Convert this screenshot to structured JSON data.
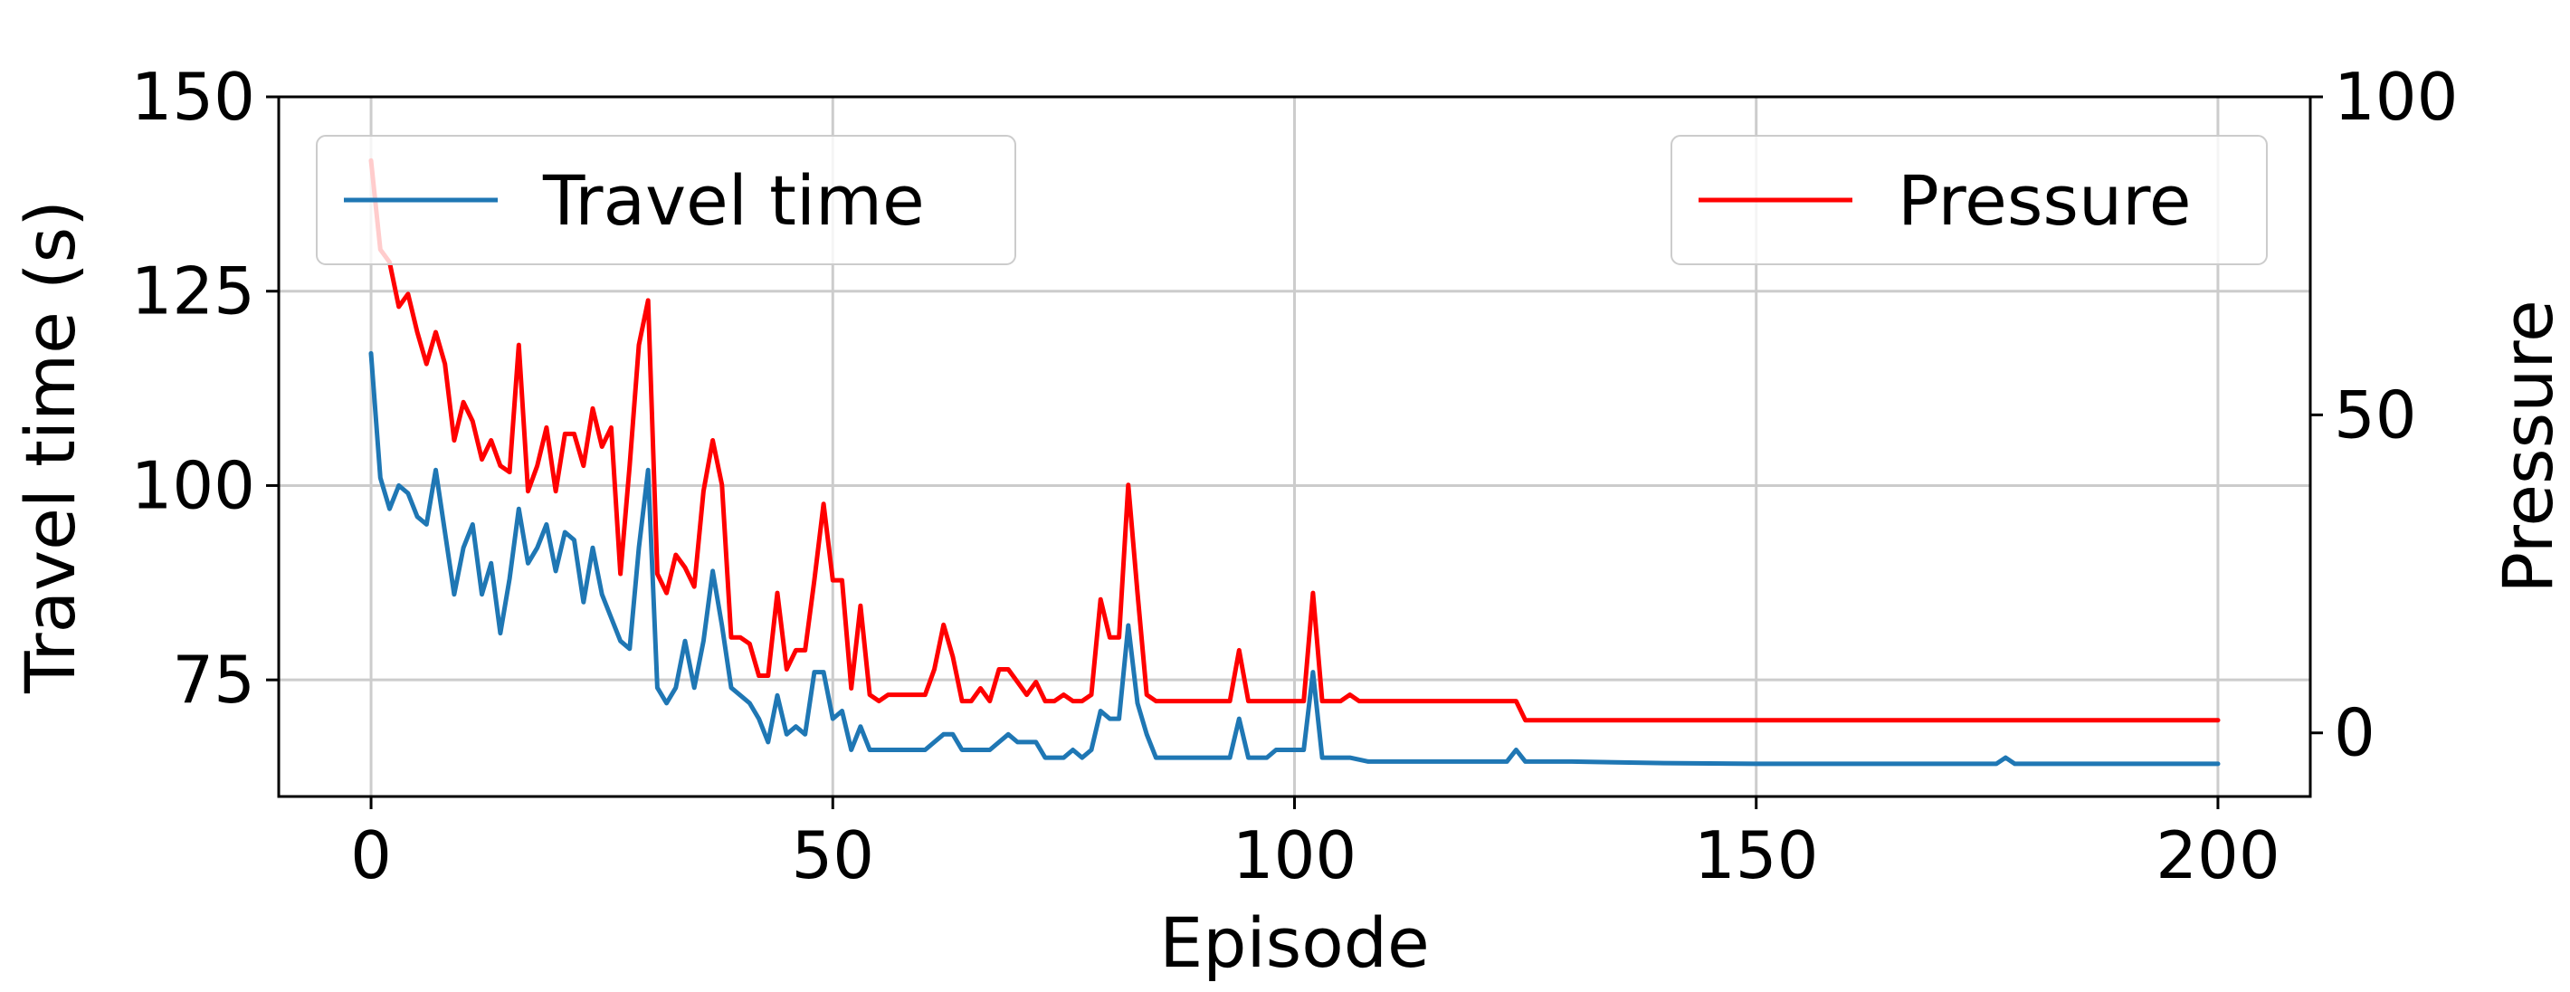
{
  "chart_data": {
    "type": "line",
    "xlabel": "Episode",
    "ylabel_left": "Travel time (s)",
    "ylabel_right": "Pressure",
    "xlim": [
      -10,
      210
    ],
    "ylim_left": [
      60,
      150
    ],
    "ylim_right": [
      -10,
      100
    ],
    "xticks": [
      0,
      50,
      100,
      150,
      200
    ],
    "yticks_left": [
      75,
      100,
      125,
      150
    ],
    "yticks_right": [
      0,
      50,
      100
    ],
    "grid": true,
    "legend_left": "top-left",
    "legend_right": "top-right",
    "series": [
      {
        "name": "Travel time",
        "axis": "left",
        "color": "#1f77b4",
        "x": [
          0,
          1,
          2,
          3,
          4,
          5,
          6,
          7,
          8,
          9,
          10,
          11,
          12,
          13,
          14,
          15,
          16,
          17,
          18,
          19,
          20,
          21,
          22,
          23,
          24,
          25,
          26,
          27,
          28,
          29,
          30,
          31,
          32,
          33,
          34,
          35,
          36,
          37,
          38,
          39,
          40,
          41,
          42,
          43,
          44,
          45,
          46,
          47,
          48,
          49,
          50,
          51,
          52,
          53,
          54,
          55,
          56,
          57,
          58,
          59,
          60,
          61,
          62,
          63,
          64,
          65,
          66,
          67,
          68,
          69,
          70,
          71,
          72,
          73,
          74,
          75,
          76,
          77,
          78,
          79,
          80,
          81,
          82,
          83,
          84,
          85,
          86,
          87,
          88,
          89,
          90,
          91,
          92,
          93,
          94,
          95,
          96,
          97,
          98,
          99,
          100,
          101,
          102,
          103,
          104,
          105,
          106,
          108,
          110,
          115,
          120,
          123,
          124,
          125,
          130,
          140,
          150,
          160,
          170,
          175,
          176,
          177,
          178,
          180,
          185,
          190,
          195,
          200
        ],
        "y": [
          117,
          101,
          97,
          100,
          99,
          96,
          95,
          102,
          94,
          86,
          92,
          95,
          86,
          90,
          81,
          88,
          97,
          90,
          92,
          95,
          89,
          94,
          93,
          85,
          92,
          86,
          83,
          80,
          79,
          92,
          102,
          74,
          72,
          74,
          80,
          74,
          80,
          89,
          82,
          74,
          73,
          72,
          70,
          67,
          73,
          68,
          69,
          68,
          76,
          76,
          70,
          71,
          66,
          69,
          66,
          66,
          66,
          66,
          66,
          66,
          66,
          67,
          68,
          68,
          66,
          66,
          66,
          66,
          67,
          68,
          67,
          67,
          67,
          65,
          65,
          65,
          66,
          65,
          66,
          71,
          70,
          70,
          82,
          72,
          68,
          65,
          65,
          65,
          65,
          65,
          65,
          65,
          65,
          65,
          70,
          65,
          65,
          65,
          66,
          66,
          66,
          66,
          76,
          65,
          65,
          65,
          65,
          64.5,
          64.5,
          64.5,
          64.5,
          64.5,
          66,
          64.5,
          64.5,
          64.3,
          64.2,
          64.2,
          64.2,
          64.2,
          64.2,
          65,
          64.2,
          64.2,
          64.2,
          64.2,
          64.2,
          64.2
        ]
      },
      {
        "name": "Pressure",
        "axis": "right",
        "color": "#ff0000",
        "x": [
          0,
          1,
          2,
          3,
          4,
          5,
          6,
          7,
          8,
          9,
          10,
          11,
          12,
          13,
          14,
          15,
          16,
          17,
          18,
          19,
          20,
          21,
          22,
          23,
          24,
          25,
          26,
          27,
          28,
          29,
          30,
          31,
          32,
          33,
          34,
          35,
          36,
          37,
          38,
          39,
          40,
          41,
          42,
          43,
          44,
          45,
          46,
          47,
          48,
          49,
          50,
          51,
          52,
          53,
          54,
          55,
          56,
          57,
          58,
          59,
          60,
          61,
          62,
          63,
          64,
          65,
          66,
          67,
          68,
          69,
          70,
          71,
          72,
          73,
          74,
          75,
          76,
          77,
          78,
          79,
          80,
          81,
          82,
          83,
          84,
          85,
          86,
          87,
          88,
          89,
          90,
          91,
          92,
          93,
          94,
          95,
          96,
          97,
          98,
          99,
          100,
          101,
          102,
          103,
          104,
          105,
          106,
          107,
          108,
          110,
          115,
          120,
          123,
          124,
          125,
          130,
          140,
          150,
          160,
          170,
          175,
          176,
          177,
          178,
          180,
          185,
          190,
          195,
          200
        ],
        "y": [
          90,
          76,
          74,
          67,
          69,
          63,
          58,
          63,
          58,
          46,
          52,
          49,
          43,
          46,
          42,
          41,
          61,
          38,
          42,
          48,
          38,
          47,
          47,
          42,
          51,
          45,
          48,
          25,
          42,
          61,
          68,
          25,
          22,
          28,
          26,
          23,
          38,
          46,
          39,
          15,
          15,
          14,
          9,
          9,
          22,
          10,
          13,
          13,
          24,
          36,
          24,
          24,
          7,
          20,
          6,
          5,
          6,
          6,
          6,
          6,
          6,
          10,
          17,
          12,
          5,
          5,
          7,
          5,
          10,
          10,
          8,
          6,
          8,
          5,
          5,
          6,
          5,
          5,
          6,
          21,
          15,
          15,
          39,
          22,
          6,
          5,
          5,
          5,
          5,
          5,
          5,
          5,
          5,
          5,
          13,
          5,
          5,
          5,
          5,
          5,
          5,
          5,
          22,
          5,
          5,
          5,
          6,
          5,
          5,
          5,
          5,
          5,
          5,
          5,
          2,
          2,
          2,
          2,
          2,
          2,
          2,
          2,
          2,
          2,
          2,
          2,
          2,
          2,
          2
        ]
      }
    ]
  }
}
